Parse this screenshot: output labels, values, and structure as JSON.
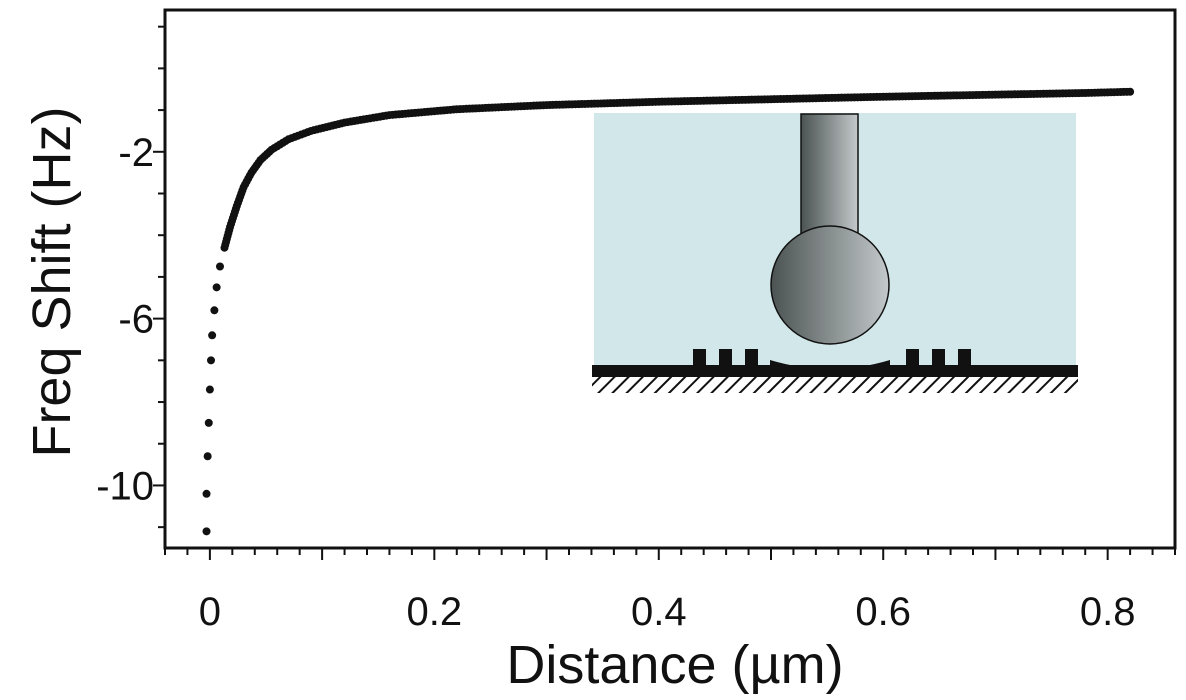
{
  "chart_data": {
    "type": "scatter",
    "xlabel": "Distance (µm)",
    "ylabel": "Freq Shift (Hz)",
    "xlim": [
      -0.04,
      0.86
    ],
    "ylim": [
      -11.5,
      1.4
    ],
    "x_ticks": [
      0,
      0.2,
      0.4,
      0.6,
      0.8
    ],
    "x_tick_labels": [
      "0",
      "0.2",
      "0.4",
      "0.6",
      "0.8"
    ],
    "y_ticks": [
      -2,
      -6,
      -10
    ],
    "y_tick_labels": [
      "-2",
      "-6",
      "-10"
    ],
    "grid": false,
    "marker_color": "#111111",
    "series": [
      {
        "points": [
          [
            -0.003,
            -11.1
          ],
          [
            -0.003,
            -10.2
          ],
          [
            -0.002,
            -9.3
          ],
          [
            -0.001,
            -8.5
          ],
          [
            0.0,
            -7.7
          ],
          [
            0.001,
            -7.0
          ],
          [
            0.002,
            -6.4
          ],
          [
            0.004,
            -5.8
          ],
          [
            0.006,
            -5.25
          ],
          [
            0.009,
            -4.75
          ],
          [
            0.013,
            -4.3
          ],
          [
            0.018,
            -3.8
          ],
          [
            0.024,
            -3.3
          ],
          [
            0.03,
            -2.85
          ],
          [
            0.037,
            -2.5
          ],
          [
            0.045,
            -2.2
          ],
          [
            0.055,
            -1.95
          ],
          [
            0.07,
            -1.7
          ],
          [
            0.09,
            -1.5
          ],
          [
            0.12,
            -1.3
          ],
          [
            0.16,
            -1.12
          ],
          [
            0.22,
            -0.98
          ],
          [
            0.3,
            -0.88
          ],
          [
            0.4,
            -0.8
          ],
          [
            0.5,
            -0.74
          ],
          [
            0.6,
            -0.68
          ],
          [
            0.7,
            -0.63
          ],
          [
            0.78,
            -0.59
          ],
          [
            0.82,
            -0.56
          ]
        ]
      }
    ]
  },
  "inset": {
    "liquid_color": "#d2e7e9",
    "tip_dark_color": "#4b5252",
    "tip_light_color": "#c4cacb",
    "substrate_color": "#111111"
  }
}
